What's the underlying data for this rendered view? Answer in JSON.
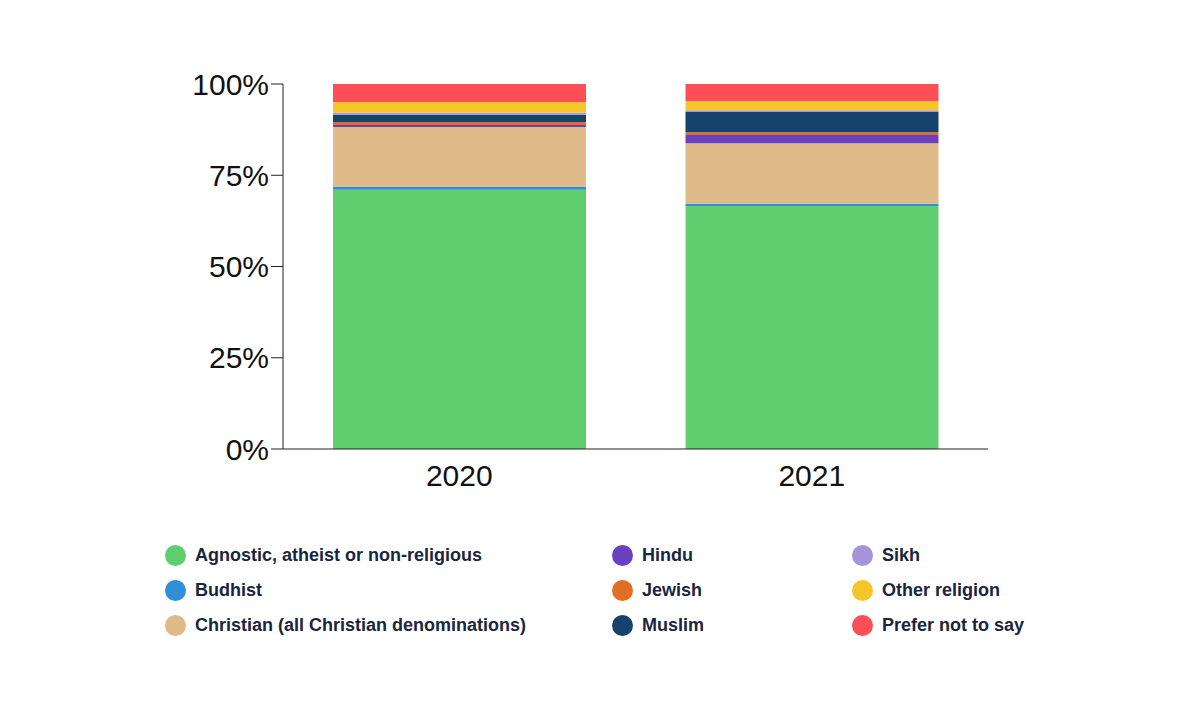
{
  "chart_data": {
    "type": "bar",
    "stacked": true,
    "grid": false,
    "legend": "bottom",
    "categories": [
      "2020",
      "2021"
    ],
    "ylim": [
      0,
      100
    ],
    "yticks": [
      {
        "value": 0,
        "label": "0%"
      },
      {
        "value": 25,
        "label": "25%"
      },
      {
        "value": 50,
        "label": "50%"
      },
      {
        "value": 75,
        "label": "75%"
      },
      {
        "value": 100,
        "label": "100%"
      }
    ],
    "series": [
      {
        "name": "Agnostic, atheist or non-religious",
        "color": "#5fce6f",
        "values": [
          71.0,
          66.6
        ]
      },
      {
        "name": "Budhist",
        "color": "#2f8fd8",
        "values": [
          0.8,
          0.6
        ]
      },
      {
        "name": "Christian (all Christian denominations)",
        "color": "#debb88",
        "values": [
          16.4,
          16.6
        ]
      },
      {
        "name": "Hindu",
        "color": "#6a3fc0",
        "values": [
          0.6,
          2.2
        ]
      },
      {
        "name": "Jewish",
        "color": "#e06e25",
        "values": [
          0.8,
          0.8
        ]
      },
      {
        "name": "Muslim",
        "color": "#16436b",
        "values": [
          2.0,
          5.5
        ]
      },
      {
        "name": "Sikh",
        "color": "#a593dc",
        "values": [
          0.5,
          0.5
        ]
      },
      {
        "name": "Other religion",
        "color": "#f5c52a",
        "values": [
          3.0,
          2.5
        ]
      },
      {
        "name": "Prefer not to say",
        "color": "#ff4f56",
        "values": [
          4.9,
          4.7
        ]
      }
    ]
  }
}
